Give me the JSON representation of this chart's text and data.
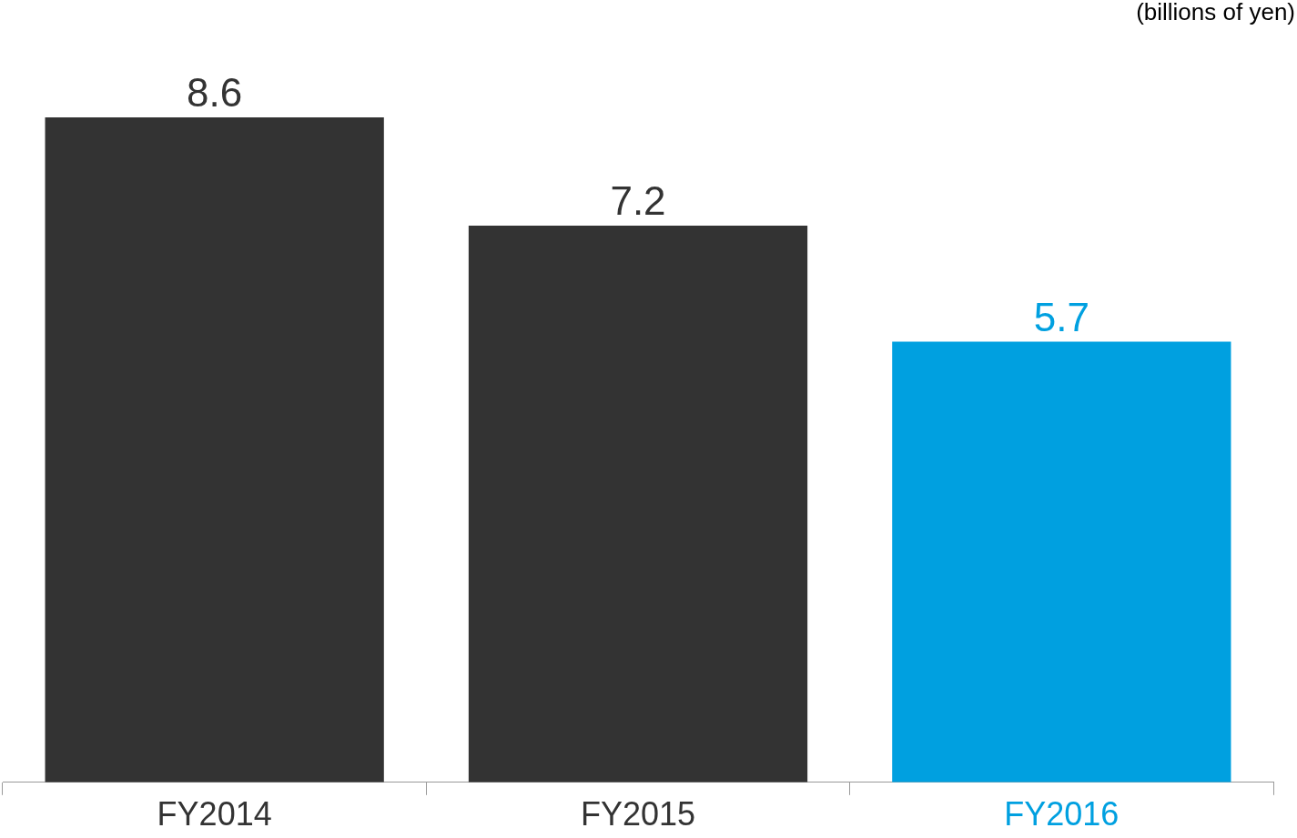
{
  "chart_data": {
    "type": "bar",
    "ylabel": "(billions of yen)",
    "categories": [
      "FY2014",
      "FY2015",
      "FY2016"
    ],
    "values": [
      8.6,
      7.2,
      5.7
    ],
    "colors": [
      "#333333",
      "#333333",
      "#00a0e0"
    ],
    "data_labels": true,
    "grid": false,
    "legend": false
  }
}
